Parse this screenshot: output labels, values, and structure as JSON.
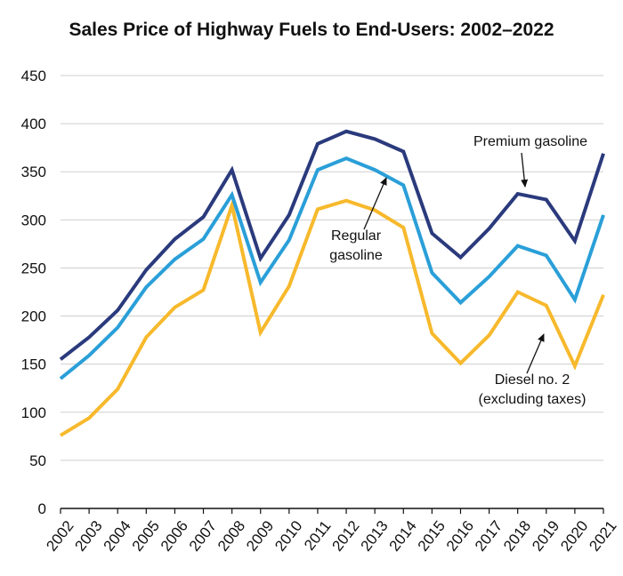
{
  "chart_data": {
    "type": "line",
    "title": "Sales Price of Highway Fuels to End-Users: 2002–2022",
    "xlabel": "",
    "ylabel": "",
    "ylim": [
      0,
      450
    ],
    "yticks": [
      0,
      50,
      100,
      150,
      200,
      250,
      300,
      350,
      400,
      450
    ],
    "x": [
      "2002",
      "2003",
      "2004",
      "2005",
      "2006",
      "2007",
      "2008",
      "2009",
      "2010",
      "2011",
      "2012",
      "2013",
      "2014",
      "2015",
      "2016",
      "2017",
      "2018",
      "2019",
      "2020",
      "2021"
    ],
    "grid": true,
    "series": [
      {
        "name": "Premium gasoline",
        "color": "#2a3a7c",
        "values": [
          155,
          178,
          206,
          248,
          280,
          303,
          352,
          260,
          305,
          379,
          392,
          384,
          371,
          286,
          261,
          291,
          327,
          321,
          278,
          369
        ]
      },
      {
        "name": "Regular gasoline",
        "color": "#2a9fd8",
        "values": [
          135,
          159,
          188,
          230,
          259,
          280,
          326,
          235,
          279,
          352,
          364,
          352,
          336,
          245,
          214,
          241,
          273,
          263,
          217,
          305
        ]
      },
      {
        "name": "Diesel no. 2 (excluding taxes)",
        "color": "#f7b92c",
        "values": [
          76,
          94,
          124,
          178,
          209,
          227,
          315,
          183,
          231,
          311,
          320,
          310,
          292,
          182,
          151,
          180,
          225,
          211,
          148,
          222
        ]
      }
    ],
    "annotations": [
      {
        "series": 0,
        "lines": [
          "Premium gasoline"
        ]
      },
      {
        "series": 1,
        "lines": [
          "Regular",
          "gasoline"
        ]
      },
      {
        "series": 2,
        "lines": [
          "Diesel no. 2",
          "(excluding taxes)"
        ]
      }
    ]
  }
}
